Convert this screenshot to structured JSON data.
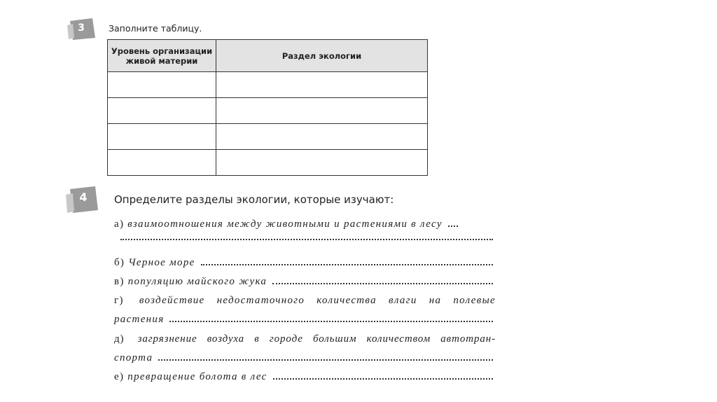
{
  "task3": {
    "number": "3",
    "instruction": "Заполните таблицу.",
    "table": {
      "headers": [
        "Уровень организации живой материи",
        "Раздел экологии"
      ]
    }
  },
  "task4": {
    "number": "4",
    "instruction": "Определите разделы экологии, которые изучают:",
    "items": [
      {
        "label": "а)",
        "lines": [
          "взаимоотношения между животными и растениями в лесу"
        ]
      },
      {
        "label": "б)",
        "lines": [
          "Черное море"
        ]
      },
      {
        "label": "в)",
        "lines": [
          "популяцию майского жука"
        ]
      },
      {
        "label": "г)",
        "lines": [
          "воздействие недостаточного количества влаги на полевые",
          "растения"
        ]
      },
      {
        "label": "д)",
        "lines": [
          "загрязнение воздуха в городе большим количеством автотран-",
          "спорта"
        ]
      },
      {
        "label": "е)",
        "lines": [
          "превращение болота в лес"
        ]
      }
    ]
  }
}
